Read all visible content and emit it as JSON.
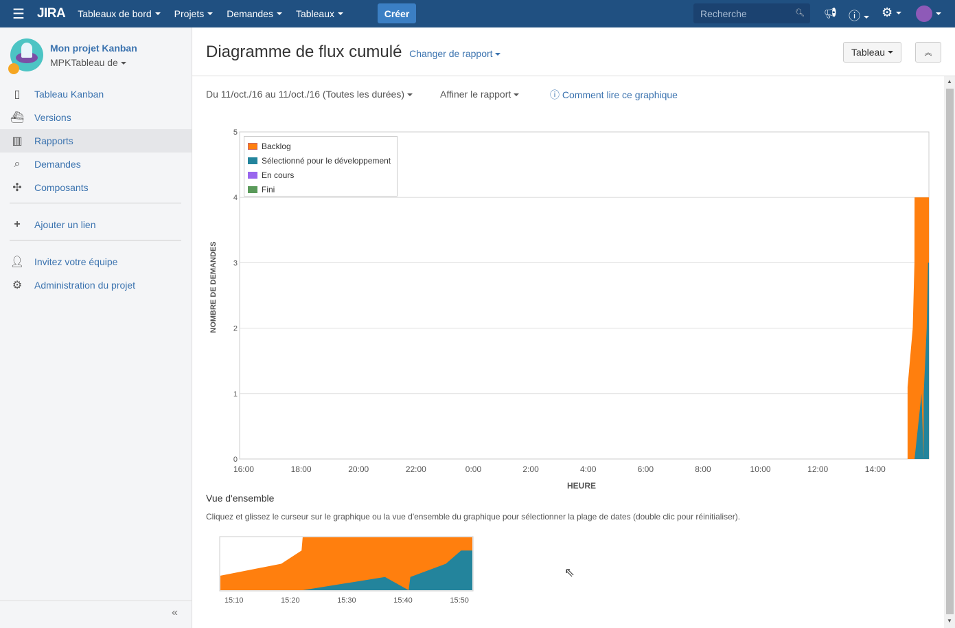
{
  "topbar": {
    "logo": "JIRA",
    "nav": [
      "Tableaux de bord",
      "Projets",
      "Demandes",
      "Tableaux"
    ],
    "create": "Créer",
    "search_placeholder": "Recherche"
  },
  "sidebar": {
    "project_name": "Mon projet Kanban",
    "board": "MPKTableau de",
    "items": [
      {
        "label": "Tableau Kanban",
        "icon": "board-icon"
      },
      {
        "label": "Versions",
        "icon": "ship-icon"
      },
      {
        "label": "Rapports",
        "icon": "chart-icon",
        "active": true
      },
      {
        "label": "Demandes",
        "icon": "issues-search-icon"
      },
      {
        "label": "Composants",
        "icon": "puzzle-icon"
      }
    ],
    "add_link": "Ajouter un lien",
    "invite": "Invitez votre équipe",
    "admin": "Administration du projet"
  },
  "page": {
    "title": "Diagramme de flux cumulé",
    "change_report": "Changer de rapport",
    "board_button": "Tableau",
    "date_range": "Du 11/oct./16 au 11/oct./16 (Toutes les durées)",
    "refine": "Affiner le rapport",
    "help": "Comment lire ce graphique",
    "overview_title": "Vue d'ensemble",
    "overview_hint": "Cliquez et glissez le curseur sur le graphique ou la vue d'ensemble du graphique pour sélectionner la plage de dates (double clic pour réinitialiser)."
  },
  "chart_data": {
    "type": "area",
    "ylabel": "NOMBRE DE DEMANDES",
    "xlabel": "HEURE",
    "ylim": [
      0,
      5
    ],
    "yticks": [
      "0",
      "1",
      "2",
      "3",
      "4",
      "5"
    ],
    "xticks": [
      "16:00",
      "18:00",
      "20:00",
      "22:00",
      "0:00",
      "2:00",
      "4:00",
      "6:00",
      "8:00",
      "10:00",
      "12:00",
      "14:00"
    ],
    "legend": [
      {
        "name": "Backlog",
        "color": "#ff7f0e"
      },
      {
        "name": "Sélectionné pour le développement",
        "color": "#23849c"
      },
      {
        "name": "En cours",
        "color": "#9966ee"
      },
      {
        "name": "Fini",
        "color": "#5a9a5a"
      }
    ],
    "series_note": "cumulative totals, x = minutes after 15:00 on second day",
    "backlog_total": [
      [
        7.6,
        0
      ],
      [
        7.6,
        1.1
      ],
      [
        18.4,
        2
      ],
      [
        22,
        3
      ],
      [
        22.2,
        4
      ],
      [
        52.3,
        4
      ]
    ],
    "selected_total": [
      [
        7.6,
        0
      ],
      [
        22.2,
        0
      ],
      [
        36.8,
        1
      ],
      [
        41,
        0
      ],
      [
        41.3,
        1
      ],
      [
        47.6,
        2
      ],
      [
        50.3,
        3
      ],
      [
        52.3,
        3
      ]
    ],
    "overview_xticks": [
      "15:10",
      "15:20",
      "15:30",
      "15:40",
      "15:50"
    ]
  }
}
